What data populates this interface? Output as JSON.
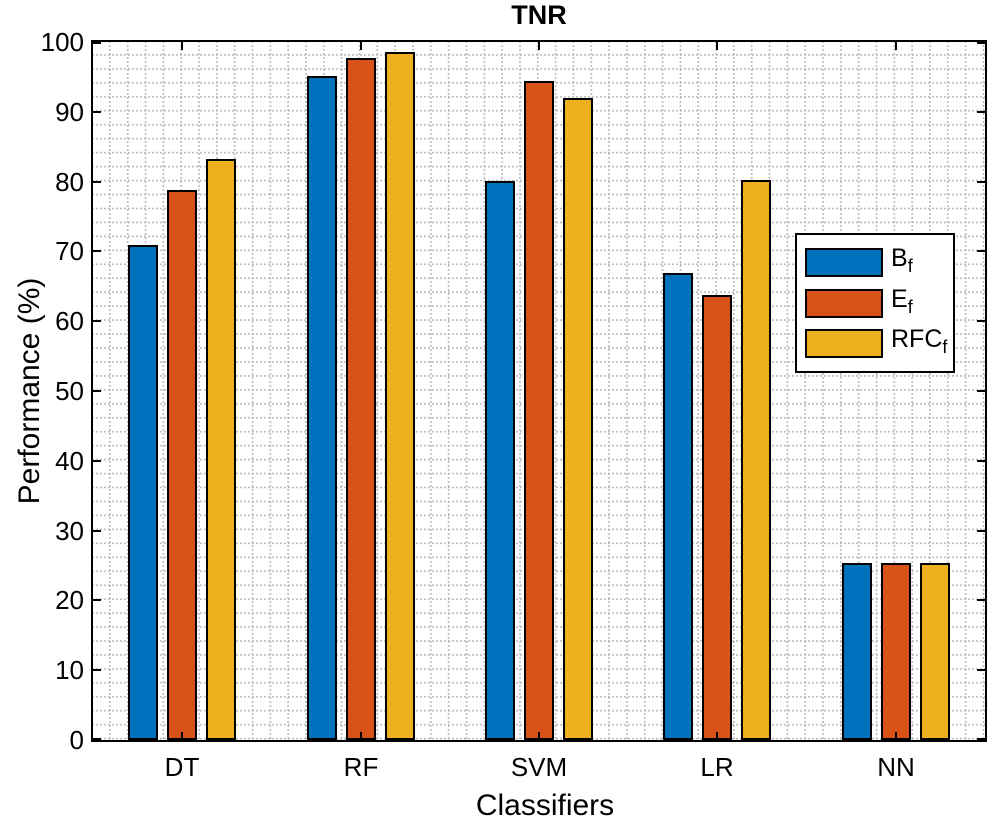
{
  "title": "TNR",
  "x_axis_label": "Classifiers",
  "y_axis_label": "Performance (%)",
  "chart_data": {
    "type": "bar",
    "title": "TNR",
    "xlabel": "Classifiers",
    "ylabel": "Performance (%)",
    "ylim": [
      0,
      100
    ],
    "ytick_step": 10,
    "ytick_labels": [
      "0",
      "10",
      "20",
      "30",
      "40",
      "50",
      "60",
      "70",
      "80",
      "90",
      "100"
    ],
    "grid": "dotted-minor-grid",
    "grid_color": "#b9b9b9",
    "box": true,
    "tick_direction": "in",
    "legend_position": "middle-right",
    "bar_edge_color": "#000000",
    "categories": [
      "DT",
      "RF",
      "SVM",
      "LR",
      "NN"
    ],
    "series": [
      {
        "name": "Bf",
        "label_main": "B",
        "label_sub": "f",
        "color": "#0072BD",
        "values": [
          70.9,
          95.2,
          80.1,
          66.9,
          25.4
        ]
      },
      {
        "name": "Ef",
        "label_main": "E",
        "label_sub": "f",
        "color": "#D95319",
        "values": [
          78.8,
          97.7,
          94.4,
          63.7,
          25.4
        ]
      },
      {
        "name": "RFCf",
        "label_main": "RFC",
        "label_sub": "f",
        "color": "#EDB120",
        "values": [
          83.2,
          98.5,
          92.0,
          80.3,
          25.4
        ]
      }
    ]
  }
}
